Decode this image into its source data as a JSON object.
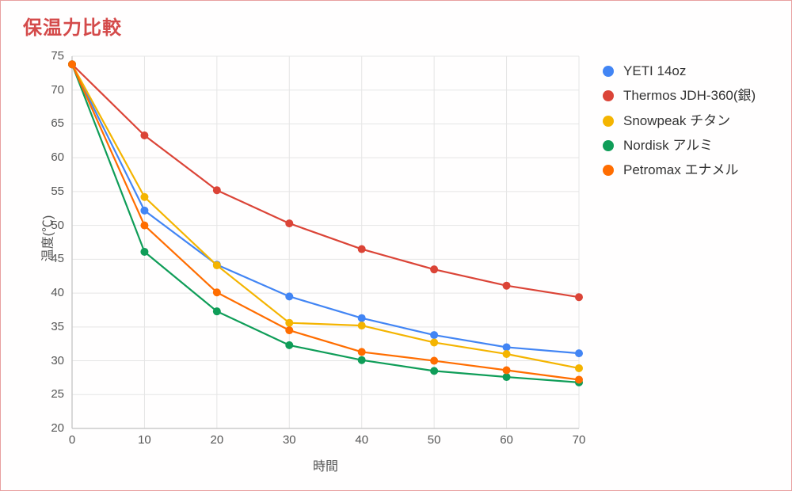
{
  "title": "保温力比較",
  "chart": {
    "type": "line",
    "xlabel": "時間",
    "ylabel": "温度(℃)",
    "xlim": [
      0,
      70
    ],
    "ylim": [
      20,
      75
    ],
    "xtick_step": 10,
    "ytick_step": 5,
    "xticks": [
      0,
      10,
      20,
      30,
      40,
      50,
      60,
      70
    ],
    "yticks": [
      20,
      25,
      30,
      35,
      40,
      45,
      50,
      55,
      60,
      65,
      70,
      75
    ],
    "background_color": "#ffffff",
    "grid_color": "#e5e5e5",
    "axis_color": "#cccccc",
    "label_fontsize": 16,
    "tick_fontsize": 15,
    "title_fontsize": 24,
    "title_color": "#d44a4a",
    "frame_border_color": "#e8a0a0",
    "line_width": 2.2,
    "marker_radius": 5,
    "x": [
      0,
      10,
      20,
      30,
      40,
      50,
      60,
      70
    ],
    "series": [
      {
        "name": "YETI 14oz",
        "color": "#4285f4",
        "y": [
          73.8,
          52.2,
          44.2,
          39.5,
          36.3,
          33.8,
          32.0,
          31.1
        ]
      },
      {
        "name": "Thermos JDH-360(銀)",
        "color": "#db4437",
        "y": [
          73.8,
          63.3,
          55.2,
          50.3,
          46.5,
          43.5,
          41.1,
          39.4
        ]
      },
      {
        "name": "Snowpeak チタン",
        "color": "#f4b400",
        "y": [
          73.8,
          54.2,
          44.1,
          35.6,
          35.2,
          32.7,
          31.0,
          28.9
        ]
      },
      {
        "name": "Nordisk アルミ",
        "color": "#0f9d58",
        "y": [
          73.8,
          46.1,
          37.3,
          32.3,
          30.1,
          28.5,
          27.6,
          26.8
        ]
      },
      {
        "name": "Petromax エナメル",
        "color": "#ff6d00",
        "y": [
          73.8,
          50.0,
          40.1,
          34.5,
          31.3,
          30.0,
          28.6,
          27.2
        ]
      }
    ]
  }
}
